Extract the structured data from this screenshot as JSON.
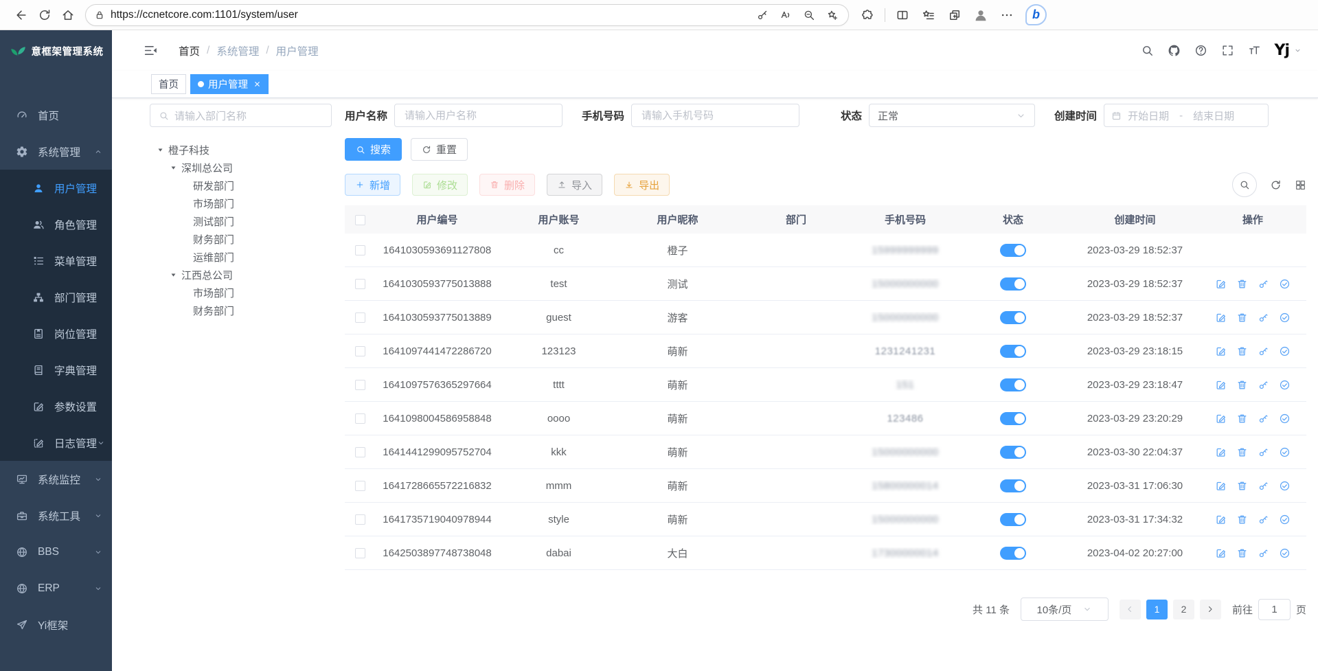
{
  "browser": {
    "url": "https://ccnetcore.com:1101/system/user"
  },
  "app": {
    "title": "意框架管理系统"
  },
  "header": {
    "breadcrumb": [
      "首页",
      "系统管理",
      "用户管理"
    ],
    "avatar_text": "Yj"
  },
  "tabs": [
    {
      "label": "首页",
      "active": false
    },
    {
      "label": "用户管理",
      "active": true
    }
  ],
  "filters": {
    "dept_placeholder": "请输入部门名称",
    "username_label": "用户名称",
    "username_placeholder": "请输入用户名称",
    "phone_label": "手机号码",
    "phone_placeholder": "请输入手机号码",
    "status_label": "状态",
    "status_value": "正常",
    "created_label": "创建时间",
    "date_start_placeholder": "开始日期",
    "date_separator": "-",
    "date_end_placeholder": "结束日期"
  },
  "sidebar": {
    "items": [
      {
        "key": "home",
        "icon": "dashboard",
        "label": "首页",
        "type": "root",
        "caret": ""
      },
      {
        "key": "system",
        "icon": "gear",
        "label": "系统管理",
        "type": "root",
        "caret": "up"
      },
      {
        "key": "user",
        "icon": "user",
        "label": "用户管理",
        "type": "sub",
        "caret": "",
        "active": true
      },
      {
        "key": "role",
        "icon": "users",
        "label": "角色管理",
        "type": "sub",
        "caret": ""
      },
      {
        "key": "menu",
        "icon": "menu-tree",
        "label": "菜单管理",
        "type": "sub",
        "caret": ""
      },
      {
        "key": "dept",
        "icon": "org",
        "label": "部门管理",
        "type": "sub",
        "caret": ""
      },
      {
        "key": "post",
        "icon": "badge",
        "label": "岗位管理",
        "type": "sub",
        "caret": ""
      },
      {
        "key": "dict",
        "icon": "book",
        "label": "字典管理",
        "type": "sub",
        "caret": ""
      },
      {
        "key": "config",
        "icon": "edit-square",
        "label": "参数设置",
        "type": "sub",
        "caret": ""
      },
      {
        "key": "log",
        "icon": "log",
        "label": "日志管理",
        "type": "sub",
        "caret": "down"
      },
      {
        "key": "monitor",
        "icon": "monitor",
        "label": "系统监控",
        "type": "root",
        "caret": "down"
      },
      {
        "key": "tools",
        "icon": "toolbox",
        "label": "系统工具",
        "type": "root",
        "caret": "down"
      },
      {
        "key": "bbs",
        "icon": "globe",
        "label": "BBS",
        "type": "root",
        "caret": "down"
      },
      {
        "key": "erp",
        "icon": "globe",
        "label": "ERP",
        "type": "root",
        "caret": "down"
      },
      {
        "key": "yiframe",
        "icon": "send",
        "label": "Yi框架",
        "type": "root",
        "caret": ""
      }
    ]
  },
  "tree": {
    "nodes": [
      {
        "label": "橙子科技",
        "level": 1,
        "caret": true
      },
      {
        "label": "深圳总公司",
        "level": 2,
        "caret": true
      },
      {
        "label": "研发部门",
        "level": 3,
        "caret": false
      },
      {
        "label": "市场部门",
        "level": 3,
        "caret": false
      },
      {
        "label": "测试部门",
        "level": 3,
        "caret": false
      },
      {
        "label": "财务部门",
        "level": 3,
        "caret": false
      },
      {
        "label": "运维部门",
        "level": 3,
        "caret": false
      },
      {
        "label": "江西总公司",
        "level": 2,
        "caret": true
      },
      {
        "label": "市场部门",
        "level": 3,
        "caret": false
      },
      {
        "label": "财务部门",
        "level": 3,
        "caret": false
      }
    ]
  },
  "actions": {
    "search": "搜索",
    "reset": "重置",
    "add": "新增",
    "edit": "修改",
    "delete": "删除",
    "import": "导入",
    "export": "导出"
  },
  "table": {
    "columns": [
      "用户编号",
      "用户账号",
      "用户昵称",
      "部门",
      "手机号码",
      "状态",
      "创建时间",
      "操作"
    ],
    "rows": [
      {
        "id": "1641030593691127808",
        "account": "cc",
        "nickname": "橙子",
        "dept": "",
        "phone": "15999999999",
        "blur": "heavy",
        "status": true,
        "created": "2023-03-29 18:52:37",
        "ops": false
      },
      {
        "id": "1641030593775013888",
        "account": "test",
        "nickname": "测试",
        "dept": "",
        "phone": "15000000000",
        "blur": "heavy",
        "status": true,
        "created": "2023-03-29 18:52:37",
        "ops": true
      },
      {
        "id": "1641030593775013889",
        "account": "guest",
        "nickname": "游客",
        "dept": "",
        "phone": "15000000000",
        "blur": "heavy",
        "status": true,
        "created": "2023-03-29 18:52:37",
        "ops": true
      },
      {
        "id": "1641097441472286720",
        "account": "123123",
        "nickname": "萌新",
        "dept": "",
        "phone": "1231241231",
        "blur": "light",
        "status": true,
        "created": "2023-03-29 23:18:15",
        "ops": true
      },
      {
        "id": "1641097576365297664",
        "account": "tttt",
        "nickname": "萌新",
        "dept": "",
        "phone": "151",
        "blur": "heavy",
        "status": true,
        "created": "2023-03-29 23:18:47",
        "ops": true
      },
      {
        "id": "1641098004586958848",
        "account": "oooo",
        "nickname": "萌新",
        "dept": "",
        "phone": "123486",
        "blur": "light",
        "status": true,
        "created": "2023-03-29 23:20:29",
        "ops": true
      },
      {
        "id": "1641441299095752704",
        "account": "kkk",
        "nickname": "萌新",
        "dept": "",
        "phone": "15000000000",
        "blur": "heavy",
        "status": true,
        "created": "2023-03-30 22:04:37",
        "ops": true
      },
      {
        "id": "1641728665572216832",
        "account": "mmm",
        "nickname": "萌新",
        "dept": "",
        "phone": "15800000014",
        "blur": "heavy",
        "status": true,
        "created": "2023-03-31 17:06:30",
        "ops": true
      },
      {
        "id": "1641735719040978944",
        "account": "style",
        "nickname": "萌新",
        "dept": "",
        "phone": "15000000000",
        "blur": "heavy",
        "status": true,
        "created": "2023-03-31 17:34:32",
        "ops": true
      },
      {
        "id": "1642503897748738048",
        "account": "dabai",
        "nickname": "大白",
        "dept": "",
        "phone": "17300000014",
        "blur": "heavy",
        "status": true,
        "created": "2023-04-02 20:27:00",
        "ops": true
      }
    ]
  },
  "pagination": {
    "total_text": "共 11 条",
    "page_size": "10条/页",
    "pages": [
      "1",
      "2"
    ],
    "current_page": "1",
    "goto_label": "前往",
    "goto_value": "1",
    "goto_suffix": "页"
  },
  "colors": {
    "primary": "#409eff",
    "sidebar_bg": "#304156",
    "submenu_bg": "#1f2d3d",
    "success": "#67c23a",
    "danger": "#f56c6c",
    "warning": "#e6a23c",
    "info": "#909399"
  }
}
